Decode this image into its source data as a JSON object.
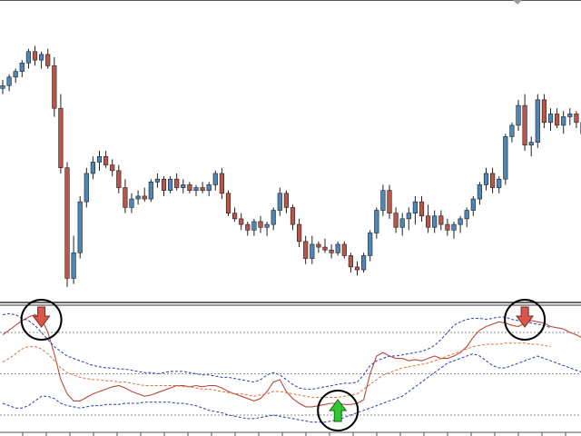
{
  "colors": {
    "bull": "#4d86b8",
    "bear": "#b8564a",
    "wick": "#202020",
    "price_line_red": "#b84a40",
    "band_blue": "#2c3cb0",
    "signal_orange": "#e0703a",
    "level_gray": "#6a6a6a",
    "arrow_down_fill": "#d9574a",
    "arrow_up_fill": "#2ec82e",
    "circle_stroke": "#000000"
  },
  "chart_data": [
    {
      "type": "candlestick",
      "title": "",
      "xlabel": "",
      "ylabel": "",
      "ylim": [
        0,
        100
      ],
      "candles": [
        {
          "o": 72,
          "h": 75,
          "l": 70,
          "c": 73
        },
        {
          "o": 73,
          "h": 77,
          "l": 71,
          "c": 76
        },
        {
          "o": 76,
          "h": 79,
          "l": 74,
          "c": 78
        },
        {
          "o": 78,
          "h": 82,
          "l": 76,
          "c": 81
        },
        {
          "o": 81,
          "h": 86,
          "l": 79,
          "c": 85
        },
        {
          "o": 85,
          "h": 87,
          "l": 80,
          "c": 82
        },
        {
          "o": 82,
          "h": 85,
          "l": 79,
          "c": 84
        },
        {
          "o": 84,
          "h": 86,
          "l": 79,
          "c": 80
        },
        {
          "o": 80,
          "h": 83,
          "l": 62,
          "c": 65
        },
        {
          "o": 65,
          "h": 70,
          "l": 42,
          "c": 44
        },
        {
          "o": 44,
          "h": 46,
          "l": 2,
          "c": 5
        },
        {
          "o": 5,
          "h": 20,
          "l": 3,
          "c": 14
        },
        {
          "o": 14,
          "h": 34,
          "l": 12,
          "c": 32
        },
        {
          "o": 32,
          "h": 44,
          "l": 30,
          "c": 42
        },
        {
          "o": 42,
          "h": 48,
          "l": 40,
          "c": 46
        },
        {
          "o": 46,
          "h": 50,
          "l": 43,
          "c": 48
        },
        {
          "o": 48,
          "h": 50,
          "l": 44,
          "c": 45
        },
        {
          "o": 45,
          "h": 47,
          "l": 41,
          "c": 43
        },
        {
          "o": 43,
          "h": 45,
          "l": 35,
          "c": 37
        },
        {
          "o": 37,
          "h": 40,
          "l": 28,
          "c": 30
        },
        {
          "o": 30,
          "h": 35,
          "l": 28,
          "c": 33
        },
        {
          "o": 33,
          "h": 36,
          "l": 31,
          "c": 34
        },
        {
          "o": 34,
          "h": 37,
          "l": 32,
          "c": 33
        },
        {
          "o": 33,
          "h": 40,
          "l": 32,
          "c": 39
        },
        {
          "o": 39,
          "h": 42,
          "l": 37,
          "c": 40
        },
        {
          "o": 40,
          "h": 41,
          "l": 34,
          "c": 36
        },
        {
          "o": 36,
          "h": 41,
          "l": 35,
          "c": 40
        },
        {
          "o": 40,
          "h": 42,
          "l": 36,
          "c": 37
        },
        {
          "o": 37,
          "h": 40,
          "l": 35,
          "c": 38
        },
        {
          "o": 38,
          "h": 39,
          "l": 35,
          "c": 36
        },
        {
          "o": 36,
          "h": 38,
          "l": 34,
          "c": 37
        },
        {
          "o": 37,
          "h": 39,
          "l": 35,
          "c": 36
        },
        {
          "o": 36,
          "h": 39,
          "l": 34,
          "c": 38
        },
        {
          "o": 38,
          "h": 43,
          "l": 36,
          "c": 42
        },
        {
          "o": 42,
          "h": 44,
          "l": 33,
          "c": 35
        },
        {
          "o": 35,
          "h": 36,
          "l": 27,
          "c": 28
        },
        {
          "o": 28,
          "h": 30,
          "l": 25,
          "c": 26
        },
        {
          "o": 26,
          "h": 28,
          "l": 22,
          "c": 24
        },
        {
          "o": 24,
          "h": 25,
          "l": 20,
          "c": 22
        },
        {
          "o": 22,
          "h": 26,
          "l": 20,
          "c": 25
        },
        {
          "o": 25,
          "h": 27,
          "l": 21,
          "c": 23
        },
        {
          "o": 23,
          "h": 25,
          "l": 20,
          "c": 24
        },
        {
          "o": 24,
          "h": 30,
          "l": 22,
          "c": 29
        },
        {
          "o": 29,
          "h": 37,
          "l": 27,
          "c": 35
        },
        {
          "o": 35,
          "h": 36,
          "l": 28,
          "c": 30
        },
        {
          "o": 30,
          "h": 31,
          "l": 22,
          "c": 24
        },
        {
          "o": 24,
          "h": 26,
          "l": 16,
          "c": 18
        },
        {
          "o": 18,
          "h": 20,
          "l": 10,
          "c": 12
        },
        {
          "o": 12,
          "h": 20,
          "l": 10,
          "c": 17
        },
        {
          "o": 17,
          "h": 18,
          "l": 14,
          "c": 16
        },
        {
          "o": 16,
          "h": 19,
          "l": 14,
          "c": 15
        },
        {
          "o": 15,
          "h": 17,
          "l": 12,
          "c": 14
        },
        {
          "o": 14,
          "h": 18,
          "l": 13,
          "c": 17
        },
        {
          "o": 17,
          "h": 18,
          "l": 12,
          "c": 13
        },
        {
          "o": 13,
          "h": 14,
          "l": 7,
          "c": 9
        },
        {
          "o": 9,
          "h": 11,
          "l": 6,
          "c": 8
        },
        {
          "o": 8,
          "h": 14,
          "l": 7,
          "c": 13
        },
        {
          "o": 13,
          "h": 22,
          "l": 11,
          "c": 21
        },
        {
          "o": 21,
          "h": 30,
          "l": 19,
          "c": 29
        },
        {
          "o": 29,
          "h": 38,
          "l": 27,
          "c": 36
        },
        {
          "o": 36,
          "h": 38,
          "l": 26,
          "c": 28
        },
        {
          "o": 28,
          "h": 30,
          "l": 21,
          "c": 23
        },
        {
          "o": 23,
          "h": 28,
          "l": 20,
          "c": 26
        },
        {
          "o": 26,
          "h": 30,
          "l": 22,
          "c": 28
        },
        {
          "o": 28,
          "h": 34,
          "l": 24,
          "c": 32
        },
        {
          "o": 32,
          "h": 34,
          "l": 25,
          "c": 27
        },
        {
          "o": 27,
          "h": 31,
          "l": 21,
          "c": 23
        },
        {
          "o": 23,
          "h": 29,
          "l": 21,
          "c": 27
        },
        {
          "o": 27,
          "h": 29,
          "l": 22,
          "c": 24
        },
        {
          "o": 24,
          "h": 26,
          "l": 20,
          "c": 22
        },
        {
          "o": 22,
          "h": 25,
          "l": 19,
          "c": 24
        },
        {
          "o": 24,
          "h": 27,
          "l": 21,
          "c": 26
        },
        {
          "o": 26,
          "h": 30,
          "l": 23,
          "c": 29
        },
        {
          "o": 29,
          "h": 34,
          "l": 27,
          "c": 33
        },
        {
          "o": 33,
          "h": 39,
          "l": 31,
          "c": 38
        },
        {
          "o": 38,
          "h": 44,
          "l": 36,
          "c": 42
        },
        {
          "o": 42,
          "h": 44,
          "l": 35,
          "c": 37
        },
        {
          "o": 37,
          "h": 41,
          "l": 35,
          "c": 40
        },
        {
          "o": 40,
          "h": 56,
          "l": 38,
          "c": 55
        },
        {
          "o": 55,
          "h": 60,
          "l": 53,
          "c": 59
        },
        {
          "o": 59,
          "h": 68,
          "l": 57,
          "c": 66
        },
        {
          "o": 66,
          "h": 70,
          "l": 50,
          "c": 52
        },
        {
          "o": 52,
          "h": 55,
          "l": 48,
          "c": 53
        },
        {
          "o": 53,
          "h": 70,
          "l": 51,
          "c": 68
        },
        {
          "o": 68,
          "h": 70,
          "l": 58,
          "c": 60
        },
        {
          "o": 60,
          "h": 65,
          "l": 57,
          "c": 63
        },
        {
          "o": 63,
          "h": 65,
          "l": 58,
          "c": 59
        },
        {
          "o": 59,
          "h": 64,
          "l": 56,
          "c": 62
        },
        {
          "o": 62,
          "h": 65,
          "l": 59,
          "c": 63
        },
        {
          "o": 63,
          "h": 64,
          "l": 58,
          "c": 60
        },
        {
          "o": 60,
          "h": 63,
          "l": 54,
          "c": 56
        },
        {
          "o": 56,
          "h": 58,
          "l": 50,
          "c": 52
        },
        {
          "o": 52,
          "h": 60,
          "l": 50,
          "c": 58
        }
      ],
      "annotations": [
        {
          "type": "arrow-down",
          "index": 6
        },
        {
          "type": "arrow-up",
          "index": 52
        },
        {
          "type": "arrow-down",
          "index": 81
        }
      ]
    },
    {
      "type": "line",
      "title": "",
      "xlabel": "",
      "ylabel": "",
      "ylim": [
        0,
        100
      ],
      "levels": [
        80,
        45,
        10
      ],
      "series": [
        {
          "style": "solid",
          "color": "#b84a40",
          "values": [
            78,
            82,
            86,
            90,
            93,
            95,
            92,
            80,
            62,
            40,
            28,
            22,
            22,
            25,
            28,
            30,
            32,
            34,
            35,
            33,
            30,
            28,
            26,
            27,
            29,
            31,
            33,
            35,
            35,
            34,
            35,
            34,
            35,
            35,
            33,
            30,
            28,
            26,
            24,
            22,
            24,
            30,
            38,
            40,
            30,
            24,
            20,
            17,
            17,
            18,
            19,
            20,
            20,
            19,
            19,
            20,
            23,
            45,
            60,
            63,
            60,
            58,
            58,
            56,
            57,
            56,
            58,
            60,
            58,
            58,
            60,
            63,
            68,
            76,
            82,
            85,
            87,
            89,
            88,
            86,
            85,
            88,
            90,
            89,
            88,
            85,
            84,
            83,
            80,
            78,
            75,
            72
          ]
        },
        {
          "style": "dashed",
          "color": "#2c3cb0",
          "values": [
            95,
            96,
            95,
            92,
            90,
            86,
            80,
            74,
            68,
            64,
            60,
            58,
            56,
            54,
            52,
            51,
            50,
            50,
            49,
            49,
            48,
            47,
            46,
            46,
            45,
            46,
            47,
            47,
            47,
            46,
            45,
            44,
            44,
            43,
            42,
            42,
            41,
            40,
            39,
            38,
            40,
            44,
            46,
            44,
            40,
            36,
            33,
            32,
            32,
            33,
            34,
            35,
            36,
            37,
            37,
            38,
            44,
            52,
            56,
            58,
            60,
            60,
            61,
            62,
            63,
            64,
            66,
            69,
            74,
            80,
            86,
            89,
            91,
            92,
            92,
            91,
            92,
            93,
            93,
            91,
            90,
            89,
            88,
            87,
            86,
            84
          ]
        },
        {
          "style": "dashed",
          "color": "#2c3cb0",
          "values": [
            20,
            18,
            16,
            16,
            18,
            22,
            26,
            26,
            24,
            20,
            18,
            17,
            16,
            17,
            18,
            18,
            19,
            19,
            19,
            20,
            20,
            20,
            21,
            21,
            21,
            21,
            21,
            20,
            20,
            19,
            18,
            16,
            14,
            13,
            12,
            10,
            9,
            8,
            7,
            7,
            8,
            9,
            10,
            9,
            8,
            7,
            6,
            5,
            4,
            4,
            4,
            5,
            6,
            8,
            10,
            12,
            14,
            16,
            18,
            20,
            22,
            24,
            26,
            30,
            34,
            38,
            42,
            46,
            50,
            54,
            56,
            58,
            60,
            62,
            60,
            56,
            52,
            50,
            50,
            52,
            54,
            56,
            58,
            60,
            58,
            56,
            54,
            52,
            50,
            48,
            46,
            44
          ]
        },
        {
          "style": "dashed",
          "color": "#e0703a",
          "values": [
            55,
            58,
            62,
            66,
            68,
            68,
            66,
            62,
            56,
            50,
            46,
            44,
            42,
            41,
            40,
            40,
            39,
            39,
            38,
            38,
            37,
            36,
            35,
            35,
            35,
            35,
            35,
            35,
            34,
            34,
            33,
            32,
            32,
            31,
            30,
            29,
            28,
            28,
            27,
            26,
            27,
            28,
            30,
            30,
            29,
            28,
            27,
            26,
            25,
            25,
            25,
            25,
            25,
            26,
            27,
            28,
            32,
            36,
            40,
            44,
            46,
            48,
            50,
            51,
            52,
            53,
            54,
            56,
            58,
            60,
            62,
            64,
            66,
            68,
            69,
            70,
            70,
            70,
            71,
            71,
            71,
            71,
            70,
            70,
            69,
            68
          ]
        }
      ],
      "annotations": [
        {
          "type": "arrow-down",
          "index": 6
        },
        {
          "type": "arrow-up",
          "index": 52
        },
        {
          "type": "arrow-down",
          "index": 81
        }
      ]
    }
  ]
}
